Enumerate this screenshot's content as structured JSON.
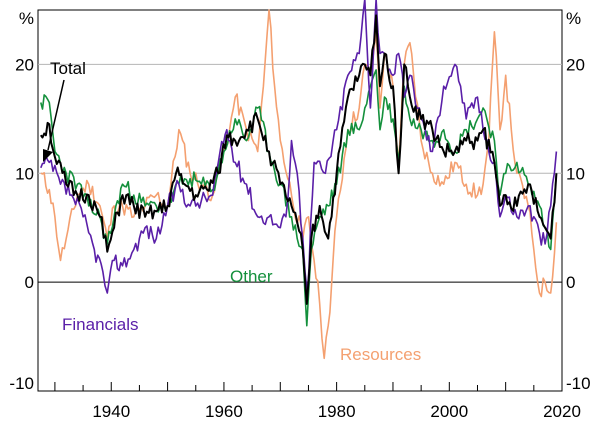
{
  "chart_data": {
    "type": "line",
    "title": "",
    "xlabel": "",
    "ylabel": "%",
    "ylabel_right": "%",
    "xlim": [
      1927,
      2020
    ],
    "ylim": [
      -10,
      25
    ],
    "x_ticks": [
      1940,
      1960,
      1980,
      2000,
      2020
    ],
    "y_ticks": [
      -10,
      0,
      10,
      20
    ],
    "series": [
      {
        "name": "Total",
        "color": "#000000",
        "points": [
          [
            1927.5,
            13.5
          ],
          [
            1929,
            14.5
          ],
          [
            1930,
            11.5
          ],
          [
            1932,
            9
          ],
          [
            1934,
            8
          ],
          [
            1936,
            8
          ],
          [
            1938,
            6
          ],
          [
            1939.3,
            2.8
          ],
          [
            1940.5,
            5
          ],
          [
            1942,
            8
          ],
          [
            1944,
            7
          ],
          [
            1946,
            6
          ],
          [
            1948,
            6.5
          ],
          [
            1950,
            7
          ],
          [
            1951.5,
            10
          ],
          [
            1953,
            9
          ],
          [
            1955,
            8
          ],
          [
            1957,
            8.5
          ],
          [
            1959,
            10
          ],
          [
            1960.5,
            13.5
          ],
          [
            1962,
            13
          ],
          [
            1964,
            14
          ],
          [
            1966,
            15
          ],
          [
            1968,
            12
          ],
          [
            1970,
            9
          ],
          [
            1972,
            7
          ],
          [
            1974,
            3
          ],
          [
            1974.7,
            -2
          ],
          [
            1975.5,
            4
          ],
          [
            1977,
            7
          ],
          [
            1978.5,
            4
          ],
          [
            1980,
            10
          ],
          [
            1982,
            17
          ],
          [
            1984,
            19
          ],
          [
            1985,
            20
          ],
          [
            1986,
            19
          ],
          [
            1987,
            24.5
          ],
          [
            1987.7,
            18
          ],
          [
            1988.5,
            21
          ],
          [
            1990,
            18
          ],
          [
            1991,
            10
          ],
          [
            1992,
            20
          ],
          [
            1993,
            17
          ],
          [
            1995,
            15
          ],
          [
            1997,
            14
          ],
          [
            1999,
            12
          ],
          [
            2001,
            12
          ],
          [
            2003,
            13
          ],
          [
            2005,
            13
          ],
          [
            2006,
            14
          ],
          [
            2008,
            11
          ],
          [
            2009,
            7
          ],
          [
            2010,
            8
          ],
          [
            2012,
            7
          ],
          [
            2014,
            9
          ],
          [
            2016,
            6
          ],
          [
            2017,
            5
          ],
          [
            2018,
            4
          ],
          [
            2019,
            10
          ]
        ]
      },
      {
        "name": "Financials",
        "color": "#5a1fa8",
        "points": [
          [
            1927.5,
            10.5
          ],
          [
            1929,
            11
          ],
          [
            1931,
            9
          ],
          [
            1933,
            8
          ],
          [
            1935,
            6
          ],
          [
            1937,
            3
          ],
          [
            1938.5,
            1
          ],
          [
            1939.3,
            -1
          ],
          [
            1940.5,
            2
          ],
          [
            1942,
            1.5
          ],
          [
            1944,
            3
          ],
          [
            1946,
            5
          ],
          [
            1948,
            4
          ],
          [
            1950,
            7
          ],
          [
            1952,
            9
          ],
          [
            1954,
            7
          ],
          [
            1956,
            7.5
          ],
          [
            1958,
            8
          ],
          [
            1959,
            11
          ],
          [
            1960.5,
            14
          ],
          [
            1962,
            11
          ],
          [
            1964,
            9
          ],
          [
            1966,
            6
          ],
          [
            1968,
            6
          ],
          [
            1970,
            5
          ],
          [
            1971,
            6
          ],
          [
            1972,
            13
          ],
          [
            1973,
            10
          ],
          [
            1974,
            4
          ],
          [
            1974.8,
            -1
          ],
          [
            1976,
            11
          ],
          [
            1978,
            10
          ],
          [
            1980,
            14
          ],
          [
            1982,
            19
          ],
          [
            1984,
            21
          ],
          [
            1985,
            26
          ],
          [
            1986,
            16
          ],
          [
            1987,
            26
          ],
          [
            1987.7,
            21
          ],
          [
            1988.5,
            21
          ],
          [
            1990,
            19
          ],
          [
            1991,
            21
          ],
          [
            1992,
            17
          ],
          [
            1993,
            19
          ],
          [
            1995,
            15
          ],
          [
            1997,
            12
          ],
          [
            1999,
            18
          ],
          [
            2001,
            20
          ],
          [
            2002,
            18
          ],
          [
            2003,
            15
          ],
          [
            2005,
            17
          ],
          [
            2006,
            14
          ],
          [
            2008,
            11
          ],
          [
            2009,
            6
          ],
          [
            2010,
            8
          ],
          [
            2012,
            6
          ],
          [
            2014,
            7
          ],
          [
            2016,
            4.5
          ],
          [
            2017,
            3.5
          ],
          [
            2018,
            7
          ],
          [
            2019,
            12
          ]
        ]
      },
      {
        "name": "Other",
        "color": "#14903c",
        "points": [
          [
            1927.5,
            16.5
          ],
          [
            1929,
            16.5
          ],
          [
            1930,
            12
          ],
          [
            1932,
            10
          ],
          [
            1934,
            9
          ],
          [
            1936,
            7
          ],
          [
            1938,
            6
          ],
          [
            1939.3,
            3.5
          ],
          [
            1940.5,
            6
          ],
          [
            1942,
            9
          ],
          [
            1944,
            8
          ],
          [
            1946,
            7
          ],
          [
            1948,
            7
          ],
          [
            1950,
            7
          ],
          [
            1952,
            9
          ],
          [
            1954,
            9.5
          ],
          [
            1956,
            9
          ],
          [
            1958,
            8.5
          ],
          [
            1960,
            12
          ],
          [
            1962,
            15
          ],
          [
            1964,
            13
          ],
          [
            1966,
            16
          ],
          [
            1968,
            12
          ],
          [
            1970,
            9
          ],
          [
            1972,
            6
          ],
          [
            1973,
            4
          ],
          [
            1974,
            3
          ],
          [
            1974.7,
            -4
          ],
          [
            1975.5,
            3
          ],
          [
            1977,
            6
          ],
          [
            1978.5,
            7
          ],
          [
            1980,
            9
          ],
          [
            1982,
            14
          ],
          [
            1984,
            14
          ],
          [
            1985,
            16
          ],
          [
            1986,
            18
          ],
          [
            1987,
            19.5
          ],
          [
            1987.7,
            14
          ],
          [
            1988.5,
            17
          ],
          [
            1990,
            15
          ],
          [
            1991,
            11
          ],
          [
            1992,
            18
          ],
          [
            1993,
            15
          ],
          [
            1995,
            14
          ],
          [
            1997,
            13
          ],
          [
            1999,
            14
          ],
          [
            2001,
            12
          ],
          [
            2003,
            14
          ],
          [
            2005,
            15
          ],
          [
            2006,
            16
          ],
          [
            2008,
            13
          ],
          [
            2009,
            8
          ],
          [
            2010,
            10
          ],
          [
            2012,
            11
          ],
          [
            2014,
            9
          ],
          [
            2016,
            7
          ],
          [
            2017,
            5
          ],
          [
            2018,
            3
          ],
          [
            2019,
            10
          ]
        ]
      },
      {
        "name": "Resources",
        "color": "#f4a070",
        "points": [
          [
            1927.5,
            10
          ],
          [
            1929,
            8.5
          ],
          [
            1930,
            6
          ],
          [
            1931,
            2
          ],
          [
            1932,
            4
          ],
          [
            1934,
            8
          ],
          [
            1936,
            9
          ],
          [
            1938,
            7
          ],
          [
            1939.3,
            4
          ],
          [
            1940.5,
            7
          ],
          [
            1942,
            7
          ],
          [
            1944,
            6
          ],
          [
            1946,
            7
          ],
          [
            1948,
            8
          ],
          [
            1950,
            7
          ],
          [
            1952,
            14
          ],
          [
            1954,
            10
          ],
          [
            1956,
            9
          ],
          [
            1958,
            8
          ],
          [
            1960,
            12
          ],
          [
            1961,
            14
          ],
          [
            1962,
            17
          ],
          [
            1964,
            14
          ],
          [
            1966,
            12
          ],
          [
            1967,
            18
          ],
          [
            1968,
            25
          ],
          [
            1969,
            18
          ],
          [
            1970,
            13
          ],
          [
            1972,
            8
          ],
          [
            1974,
            4
          ],
          [
            1975,
            6
          ],
          [
            1976,
            2
          ],
          [
            1977,
            -2
          ],
          [
            1977.8,
            -7
          ],
          [
            1978.5,
            -4
          ],
          [
            1980,
            6
          ],
          [
            1982,
            14
          ],
          [
            1984,
            16
          ],
          [
            1985,
            20
          ],
          [
            1986,
            19
          ],
          [
            1987,
            23
          ],
          [
            1987.7,
            16
          ],
          [
            1988.5,
            21
          ],
          [
            1990,
            18
          ],
          [
            1991,
            11
          ],
          [
            1992,
            20
          ],
          [
            1993,
            22
          ],
          [
            1995,
            13
          ],
          [
            1997,
            10
          ],
          [
            1999,
            9
          ],
          [
            2001,
            11
          ],
          [
            2003,
            9
          ],
          [
            2005,
            8
          ],
          [
            2006,
            9
          ],
          [
            2007,
            13
          ],
          [
            2008,
            23
          ],
          [
            2009,
            14
          ],
          [
            2010,
            19
          ],
          [
            2011,
            14
          ],
          [
            2012,
            10
          ],
          [
            2014,
            7
          ],
          [
            2015,
            3
          ],
          [
            2016,
            -1
          ],
          [
            2017,
            0
          ],
          [
            2018,
            -1
          ],
          [
            2019,
            5.5
          ]
        ]
      }
    ],
    "annotations": [
      {
        "text": "Total",
        "color": "#000000",
        "near": "upper-left"
      },
      {
        "text": "Other",
        "color": "#14903c",
        "near": "center-left"
      },
      {
        "text": "Financials",
        "color": "#5a1fa8",
        "near": "lower-left"
      },
      {
        "text": "Resources",
        "color": "#f4a070",
        "near": "lower-center"
      }
    ],
    "grid": true,
    "legend": "none"
  }
}
